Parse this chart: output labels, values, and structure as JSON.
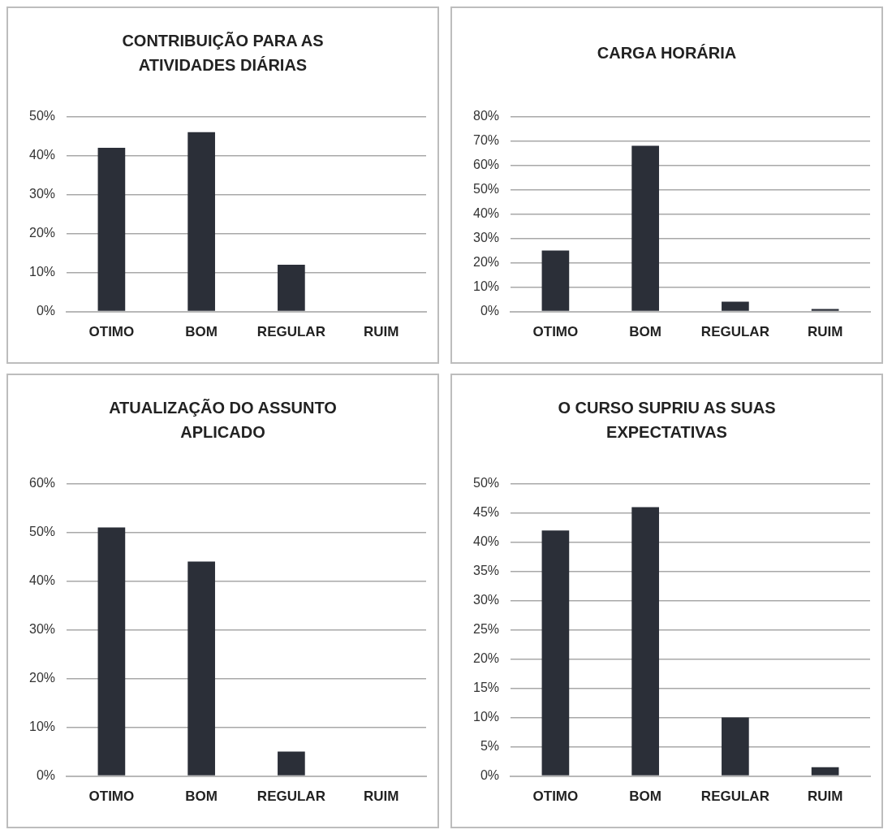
{
  "chart_data": [
    {
      "type": "bar",
      "title": "CONTRIBUIÇÃO PARA AS ATIVIDADES DIÁRIAS",
      "categories": [
        "OTIMO",
        "BOM",
        "REGULAR",
        "RUIM"
      ],
      "values": [
        42,
        46,
        12,
        0
      ],
      "color": "#2b2f38",
      "ylim": [
        0,
        50
      ],
      "yticks": [
        {
          "value": 0,
          "label": "0%"
        },
        {
          "value": 10,
          "label": "10%"
        },
        {
          "value": 20,
          "label": "20%"
        },
        {
          "value": 30,
          "label": "30%"
        },
        {
          "value": 40,
          "label": "40%"
        },
        {
          "value": 50,
          "label": "50%"
        }
      ],
      "grid": "y"
    },
    {
      "type": "bar",
      "title": "CARGA HORÁRIA",
      "categories": [
        "OTIMO",
        "BOM",
        "REGULAR",
        "RUIM"
      ],
      "values": [
        25,
        68,
        4,
        1
      ],
      "color": "#2b2f38",
      "ylim": [
        0,
        80
      ],
      "yticks": [
        {
          "value": 0,
          "label": "0%"
        },
        {
          "value": 10,
          "label": "10%"
        },
        {
          "value": 20,
          "label": "20%"
        },
        {
          "value": 30,
          "label": "30%"
        },
        {
          "value": 40,
          "label": "40%"
        },
        {
          "value": 50,
          "label": "50%"
        },
        {
          "value": 60,
          "label": "60%"
        },
        {
          "value": 70,
          "label": "70%"
        },
        {
          "value": 80,
          "label": "80%"
        }
      ],
      "grid": "y"
    },
    {
      "type": "bar",
      "title": "ATUALIZAÇÃO DO ASSUNTO APLICADO",
      "categories": [
        "OTIMO",
        "BOM",
        "REGULAR",
        "RUIM"
      ],
      "values": [
        51,
        44,
        5,
        0
      ],
      "color": "#2b2f38",
      "ylim": [
        0,
        60
      ],
      "yticks": [
        {
          "value": 0,
          "label": "0%"
        },
        {
          "value": 10,
          "label": "10%"
        },
        {
          "value": 20,
          "label": "20%"
        },
        {
          "value": 30,
          "label": "30%"
        },
        {
          "value": 40,
          "label": "40%"
        },
        {
          "value": 50,
          "label": "50%"
        },
        {
          "value": 60,
          "label": "60%"
        }
      ],
      "grid": "y"
    },
    {
      "type": "bar",
      "title": "O CURSO SUPRIU AS SUAS EXPECTATIVAS",
      "categories": [
        "OTIMO",
        "BOM",
        "REGULAR",
        "RUIM"
      ],
      "values": [
        42,
        46,
        10,
        1.5
      ],
      "color": "#2b2f38",
      "ylim": [
        0,
        50
      ],
      "yticks": [
        {
          "value": 0,
          "label": "0%"
        },
        {
          "value": 5,
          "label": "5%"
        },
        {
          "value": 10,
          "label": "10%"
        },
        {
          "value": 15,
          "label": "15%"
        },
        {
          "value": 20,
          "label": "20%"
        },
        {
          "value": 25,
          "label": "25%"
        },
        {
          "value": 30,
          "label": "30%"
        },
        {
          "value": 35,
          "label": "35%"
        },
        {
          "value": 40,
          "label": "40%"
        },
        {
          "value": 45,
          "label": "45%"
        },
        {
          "value": 50,
          "label": "50%"
        }
      ],
      "grid": "y"
    }
  ]
}
